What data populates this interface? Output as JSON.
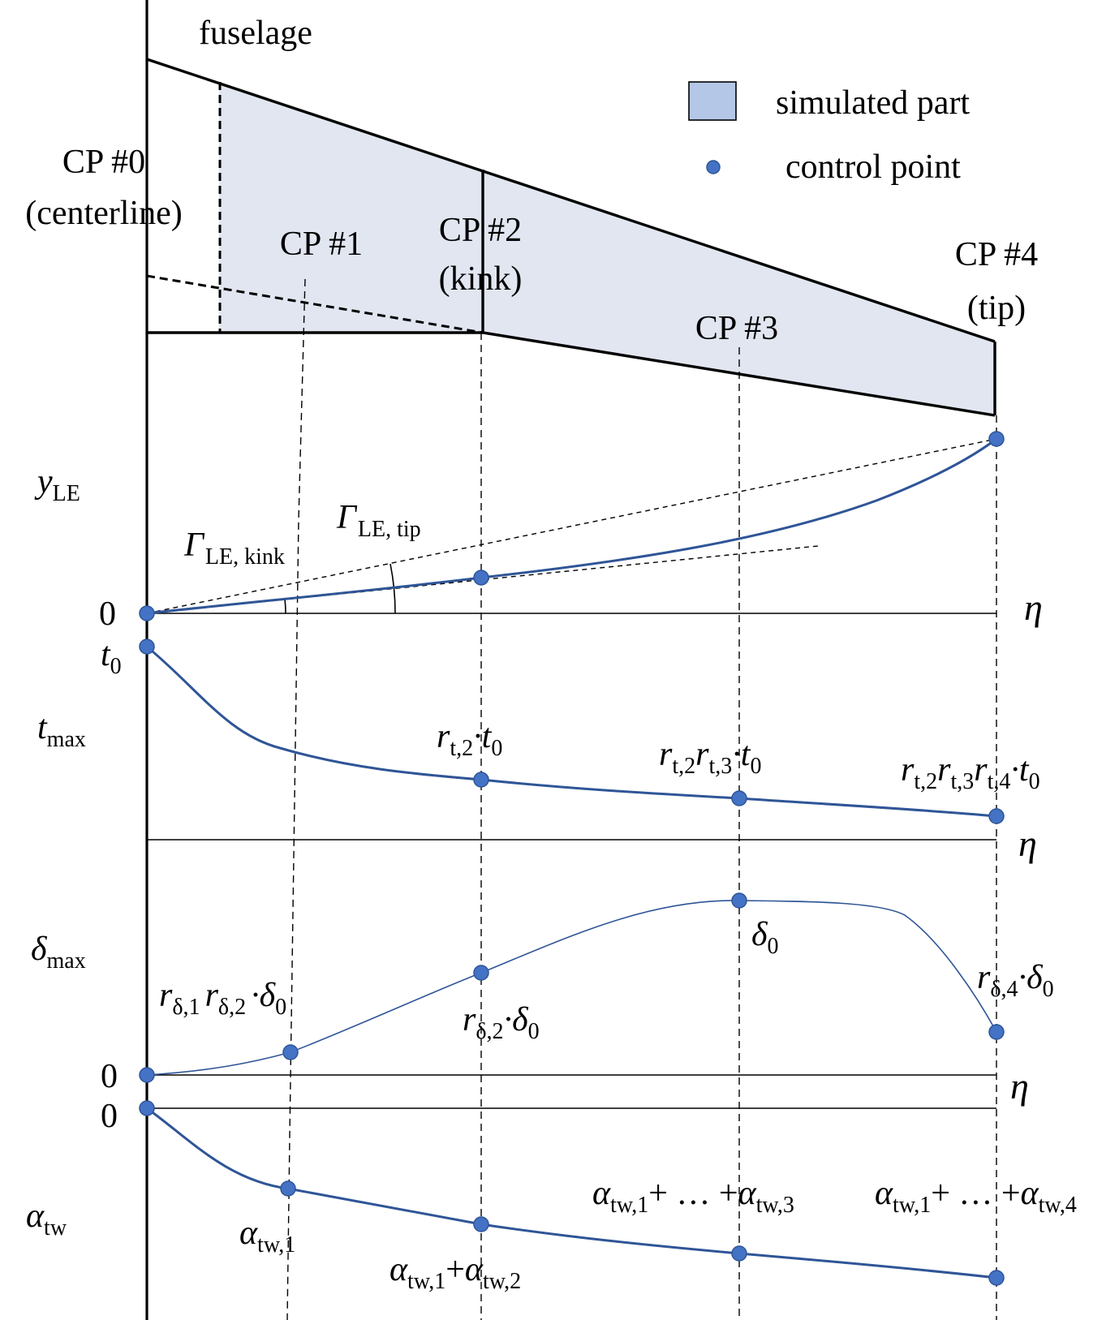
{
  "colors": {
    "simulated_fill": "#e1e6f1",
    "legend_fill": "#b4c7e7",
    "control_point": "#4472c4",
    "curve": "#2f5597"
  },
  "planform": {
    "fuselage_label": "fuselage",
    "cp0": [
      "CP #0",
      "(centerline)"
    ],
    "cp1": "CP #1",
    "cp2": [
      "CP #2",
      "(kink)"
    ],
    "cp3": "CP #3",
    "cp4": [
      "CP #4",
      "(tip)"
    ]
  },
  "legend": {
    "simulated": "simulated part",
    "control_point": "control point"
  },
  "axes": {
    "eta": "η",
    "zero": "0"
  },
  "panel_y": {
    "ylabel_main": "y",
    "ylabel_sub": "LE",
    "gamma_kink": "Γ",
    "gamma_kink_sub": "LE, kink",
    "gamma_tip": "Γ",
    "gamma_tip_sub": "LE, tip"
  },
  "panel_t": {
    "ylabel_main": "t",
    "ylabel_sub": "max",
    "t0_main": "t",
    "t0_sub": "0",
    "l2": {
      "r": "r",
      "s1": "t,2",
      "dot": "·",
      "t": "t",
      "s0": "0"
    },
    "l3": {
      "r1": "r",
      "s1": "t,2",
      "r2": "r",
      "s2": "t,3",
      "dot": "·",
      "t": "t",
      "s0": "0"
    },
    "l4": {
      "r1": "r",
      "s1": "t,2",
      "r2": "r",
      "s2": "t,3",
      "r3": "r",
      "s3": "t,4",
      "dot": "·",
      "t": "t",
      "s0": "0"
    }
  },
  "panel_d": {
    "ylabel_main": "δ",
    "ylabel_sub": "max",
    "l1": {
      "r1": "r",
      "s1": "δ,1",
      "r2": "r",
      "s2": "δ,2",
      "dot": "·",
      "d": "δ",
      "s0": "0"
    },
    "l2": {
      "r": "r",
      "s": "δ,2",
      "dot": "·",
      "d": "δ",
      "s0": "0"
    },
    "l3": {
      "d": "δ",
      "s0": "0"
    },
    "l4": {
      "r": "r",
      "s": "δ,4",
      "dot": "·",
      "d": "δ",
      "s0": "0"
    }
  },
  "panel_a": {
    "ylabel_main": "α",
    "ylabel_sub": "tw",
    "l1": {
      "a": "α",
      "s": "tw,1"
    },
    "l2": {
      "a1": "α",
      "s1": "tw,1",
      "plus": "+",
      "a2": "α",
      "s2": "tw,2"
    },
    "l3": {
      "a1": "α",
      "s1": "tw,1",
      "mid": "+ … +",
      "a2": "α",
      "s2": "tw,3"
    },
    "l4": {
      "a1": "α",
      "s1": "tw,1",
      "mid": "+ … +",
      "a2": "α",
      "s2": "tw,4"
    }
  }
}
